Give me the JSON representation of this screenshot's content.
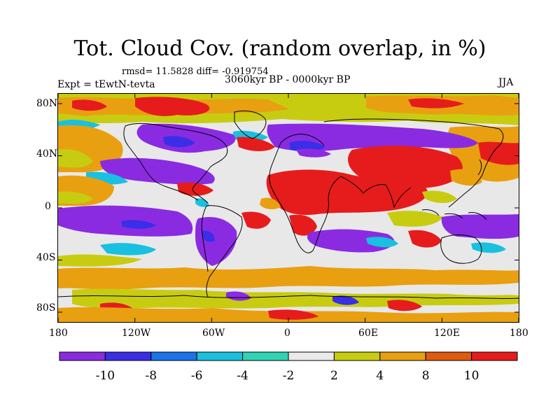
{
  "title": "Tot. Cloud Cov. (random overlap, in %)",
  "stats": "rmsd= 11.5828 diff= -0.919754",
  "expt": "Expt = tEwtN-tevta",
  "period": "3060kyr BP - 0000kyr BP",
  "season": "JJA",
  "map": {
    "lat_ticks": [
      "80N",
      "40N",
      "0",
      "40S",
      "80S"
    ],
    "lon_ticks": [
      "180",
      "120W",
      "60W",
      "0",
      "60E",
      "120E",
      "180"
    ]
  },
  "colorbar": {
    "labels": [
      "-10",
      "-8",
      "-6",
      "-4",
      "-2",
      "2",
      "4",
      "8",
      "10"
    ],
    "colors": [
      "#8a2be2",
      "#3a2ee6",
      "#1a73e8",
      "#19c0e0",
      "#2fd4b4",
      "#eaeaea",
      "#c8cc10",
      "#e8a010",
      "#e05a10",
      "#e61c1c"
    ]
  }
}
